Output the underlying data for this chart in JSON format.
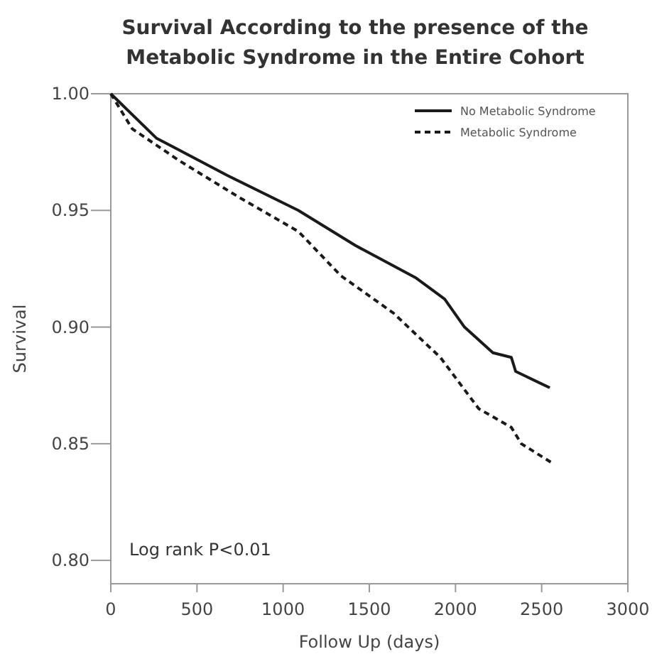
{
  "chart_data": {
    "type": "line",
    "title": "Survival According to the presence of the Metabolic Syndrome in the Entire Cohort",
    "xlabel": "Follow Up (days)",
    "ylabel": "Survival",
    "annotations": [
      "Log rank P<0.01"
    ],
    "xlim": [
      0,
      3000
    ],
    "xticks": [
      0,
      500,
      1000,
      1500,
      2000,
      2500,
      3000
    ],
    "ylim": [
      0.79,
      1.0
    ],
    "yticks": [
      {
        "value": 0.8,
        "label": "0.80"
      },
      {
        "value": 0.85,
        "label": "0.85"
      },
      {
        "value": 0.9,
        "label": "0.90"
      },
      {
        "value": 0.95,
        "label": "0.95"
      },
      {
        "value": 1.0,
        "label": "1.00"
      }
    ],
    "grid": false,
    "legend": "top right",
    "series": [
      {
        "name": "No Metabolic Syndrome",
        "color": "#1a1a1a",
        "line_style": "solid",
        "x": [
          0,
          264,
          676,
          1088,
          1418,
          1772,
          1937,
          2052,
          2217,
          2324,
          2349,
          2547
        ],
        "values": [
          1.0,
          0.981,
          0.965,
          0.95,
          0.935,
          0.921,
          0.912,
          0.9,
          0.889,
          0.887,
          0.881,
          0.874
        ]
      },
      {
        "name": "Metabolic Syndrome",
        "color": "#1a1a1a",
        "line_style": "dashed",
        "x": [
          0,
          124,
          404,
          758,
          1088,
          1335,
          1640,
          1912,
          2135,
          2324,
          2382,
          2555
        ],
        "values": [
          1.0,
          0.985,
          0.971,
          0.955,
          0.941,
          0.922,
          0.906,
          0.887,
          0.865,
          0.857,
          0.85,
          0.842
        ]
      }
    ]
  }
}
